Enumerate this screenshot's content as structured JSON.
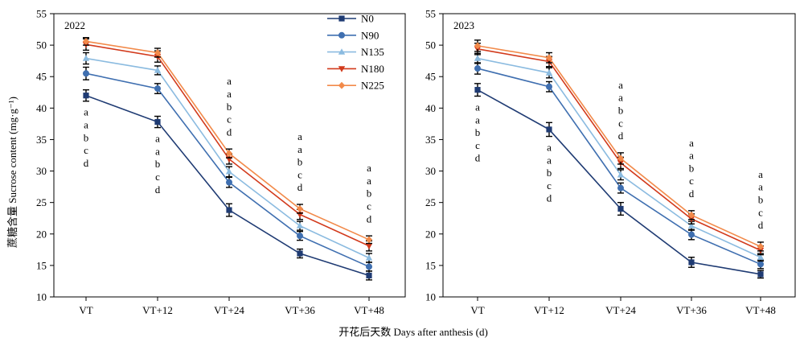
{
  "y_axis_label": "蔗糖含量 Sucrose content (mg·g⁻¹)",
  "x_axis_label": "开花后天数 Days after anthesis (d)",
  "legend": [
    {
      "name": "N0",
      "color": "#1f3b73",
      "marker": "square"
    },
    {
      "name": "N90",
      "color": "#3f6fb0",
      "marker": "circle"
    },
    {
      "name": "N135",
      "color": "#8bbbe0",
      "marker": "triangle-up"
    },
    {
      "name": "N180",
      "color": "#d23a1c",
      "marker": "triangle-down"
    },
    {
      "name": "N225",
      "color": "#f28a4a",
      "marker": "diamond"
    }
  ],
  "chart_data": [
    {
      "type": "line",
      "title": "2022",
      "categories": [
        "VT",
        "VT+12",
        "VT+24",
        "VT+36",
        "VT+48"
      ],
      "ylim": [
        10,
        55
      ],
      "yticks": [
        10,
        15,
        20,
        25,
        30,
        35,
        40,
        45,
        50,
        55
      ],
      "series": [
        {
          "name": "N0",
          "values": [
            42.0,
            37.8,
            23.8,
            16.9,
            13.4
          ],
          "errors": [
            0.9,
            0.9,
            1.0,
            0.7,
            0.7
          ]
        },
        {
          "name": "N90",
          "values": [
            45.5,
            43.1,
            28.2,
            19.7,
            14.8
          ],
          "errors": [
            1.0,
            0.8,
            0.8,
            0.7,
            0.7
          ]
        },
        {
          "name": "N135",
          "values": [
            47.9,
            46.0,
            29.9,
            21.3,
            16.2
          ],
          "errors": [
            0.9,
            0.7,
            0.8,
            0.7,
            0.7
          ]
        },
        {
          "name": "N180",
          "values": [
            50.1,
            48.2,
            31.9,
            23.1,
            18.1
          ],
          "errors": [
            0.9,
            0.9,
            0.8,
            0.8,
            0.8
          ]
        },
        {
          "name": "N225",
          "values": [
            50.6,
            48.8,
            32.8,
            24.0,
            19.1
          ],
          "errors": [
            0.6,
            0.7,
            0.7,
            0.7,
            0.6
          ]
        }
      ],
      "significance": [
        [
          "a",
          "a",
          "b",
          "c",
          "d"
        ],
        [
          "a",
          "a",
          "b",
          "c",
          "d"
        ],
        [
          "a",
          "a",
          "b",
          "c",
          "d"
        ],
        [
          "a",
          "a",
          "b",
          "c",
          "d"
        ],
        [
          "a",
          "a",
          "b",
          "c",
          "d"
        ]
      ],
      "grid": false
    },
    {
      "type": "line",
      "title": "2023",
      "categories": [
        "VT",
        "VT+12",
        "VT+24",
        "VT+36",
        "VT+48"
      ],
      "ylim": [
        10,
        55
      ],
      "yticks": [
        10,
        15,
        20,
        25,
        30,
        35,
        40,
        45,
        50,
        55
      ],
      "series": [
        {
          "name": "N0",
          "values": [
            42.9,
            36.6,
            24.0,
            15.5,
            13.6
          ],
          "errors": [
            1.0,
            1.1,
            1.0,
            0.8,
            0.6
          ]
        },
        {
          "name": "N90",
          "values": [
            46.3,
            43.4,
            27.3,
            19.9,
            15.2
          ],
          "errors": [
            0.9,
            0.8,
            0.8,
            0.8,
            0.7
          ]
        },
        {
          "name": "N135",
          "values": [
            47.9,
            45.6,
            29.4,
            21.3,
            16.3
          ],
          "errors": [
            0.8,
            0.8,
            0.8,
            0.7,
            0.6
          ]
        },
        {
          "name": "N180",
          "values": [
            49.4,
            47.4,
            31.3,
            22.4,
            17.4
          ],
          "errors": [
            0.9,
            0.8,
            0.9,
            0.8,
            0.7
          ]
        },
        {
          "name": "N225",
          "values": [
            49.9,
            48.0,
            32.0,
            23.0,
            18.0
          ],
          "errors": [
            0.9,
            0.8,
            0.9,
            0.7,
            0.7
          ]
        }
      ],
      "significance": [
        [
          "a",
          "a",
          "b",
          "c",
          "d"
        ],
        [
          "a",
          "a",
          "b",
          "c",
          "d"
        ],
        [
          "a",
          "a",
          "b",
          "c",
          "d"
        ],
        [
          "a",
          "a",
          "b",
          "c",
          "d"
        ],
        [
          "a",
          "a",
          "b",
          "c",
          "d"
        ]
      ],
      "grid": false
    }
  ]
}
